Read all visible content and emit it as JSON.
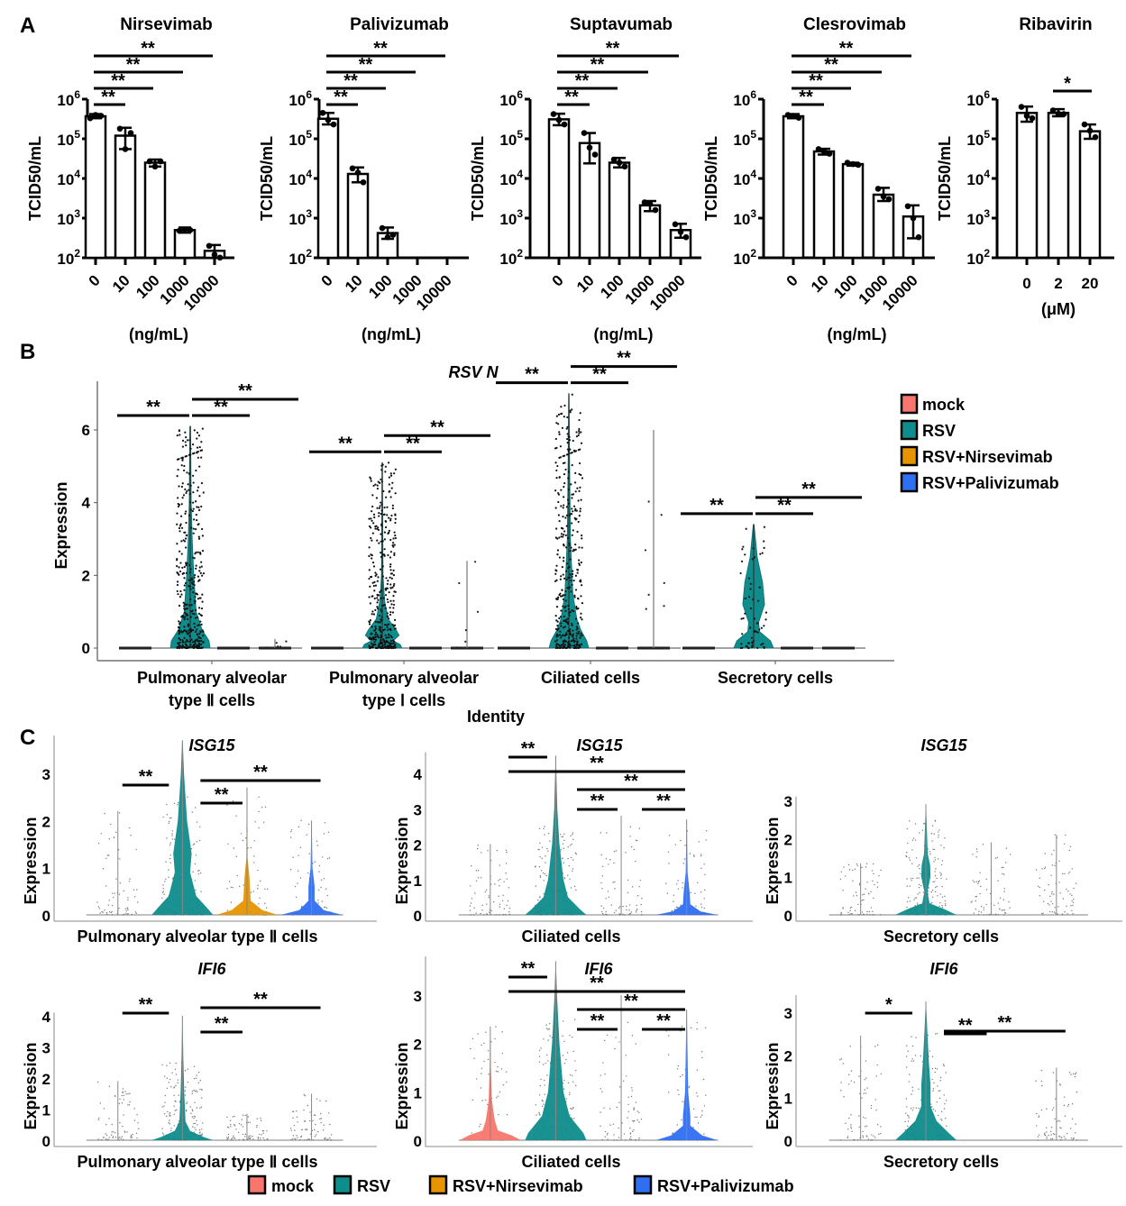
{
  "figure": {
    "panel_labels": [
      "A",
      "B",
      "C"
    ]
  },
  "legend": {
    "items": [
      {
        "label": "mock",
        "color": "#f8766d"
      },
      {
        "label": "RSV",
        "color": "#0f8c8c"
      },
      {
        "label": "RSV+Nirsevimab",
        "color": "#e69500"
      },
      {
        "label": "RSV+Palivizumab",
        "color": "#2f6ff2"
      }
    ]
  },
  "chart_data": [
    {
      "panel": "A",
      "type": "bar",
      "title": "Nirsevimab",
      "xlabel": "(ng/mL)",
      "ylabel": "TCID50/mL",
      "yscale": "log10",
      "ylim": [
        100,
        1000000
      ],
      "yticks": [
        "10^2",
        "10^3",
        "10^4",
        "10^5",
        "10^6"
      ],
      "categories": [
        "0",
        "10",
        "100",
        "1000",
        "10000"
      ],
      "values": [
        370000,
        120000,
        25000,
        500,
        150
      ],
      "errors_high": [
        420000,
        190000,
        30000,
        580,
        210
      ],
      "errors_low": [
        330000,
        55000,
        20000,
        430,
        100
      ],
      "points": [
        [
          330000,
          400000,
          380000
        ],
        [
          180000,
          55000,
          140000
        ],
        [
          27000,
          20000,
          27000
        ],
        [
          480.0,
          520,
          500
        ],
        [
          200,
          120,
          100
        ]
      ],
      "significance": [
        {
          "from": "0",
          "to": "10",
          "label": "**"
        },
        {
          "from": "0",
          "to": "100",
          "label": "**"
        },
        {
          "from": "0",
          "to": "1000",
          "label": "**"
        },
        {
          "from": "0",
          "to": "10000",
          "label": "**"
        }
      ]
    },
    {
      "panel": "A",
      "type": "bar",
      "title": "Palivizumab",
      "xlabel": "(ng/mL)",
      "ylabel": "TCID50/mL",
      "yscale": "log10",
      "ylim": [
        100,
        1000000
      ],
      "yticks": [
        "10^2",
        "10^3",
        "10^4",
        "10^5",
        "10^6"
      ],
      "categories": [
        "0",
        "10",
        "100",
        "1000",
        "10000"
      ],
      "values": [
        320000,
        13000,
        420,
        null,
        null
      ],
      "errors_high": [
        450000,
        19000,
        580,
        null,
        null
      ],
      "errors_low": [
        230000,
        8000,
        300,
        null,
        null
      ],
      "points": [
        [
          450000,
          300000,
          230000
        ],
        [
          18000,
          14000,
          8000
        ],
        [
          560,
          330,
          380
        ],
        [],
        []
      ],
      "significance": [
        {
          "from": "0",
          "to": "10",
          "label": "**"
        },
        {
          "from": "0",
          "to": "100",
          "label": "**"
        },
        {
          "from": "0",
          "to": "1000",
          "label": "**"
        },
        {
          "from": "0",
          "to": "10000",
          "label": "**"
        }
      ]
    },
    {
      "panel": "A",
      "type": "bar",
      "title": "Suptavumab",
      "xlabel": "(ng/mL)",
      "ylabel": "TCID50/mL",
      "yscale": "log10",
      "ylim": [
        100,
        1000000
      ],
      "yticks": [
        "10^2",
        "10^3",
        "10^4",
        "10^5",
        "10^6"
      ],
      "categories": [
        "0",
        "10",
        "100",
        "1000",
        "10000"
      ],
      "values": [
        310000,
        78000,
        25000,
        2100,
        500
      ],
      "errors_high": [
        430000,
        140000,
        33000,
        2700,
        720
      ],
      "errors_low": [
        220000,
        24000,
        19000,
        1500,
        320
      ],
      "points": [
        [
          420000,
          300000,
          230000
        ],
        [
          140000,
          60000,
          40000
        ],
        [
          30000,
          25000,
          20000
        ],
        [
          2500,
          2300,
          1600
        ],
        [
          700,
          450,
          330
        ]
      ],
      "significance": [
        {
          "from": "0",
          "to": "10",
          "label": "**"
        },
        {
          "from": "0",
          "to": "100",
          "label": "**"
        },
        {
          "from": "0",
          "to": "1000",
          "label": "**"
        },
        {
          "from": "0",
          "to": "10000",
          "label": "**"
        }
      ]
    },
    {
      "panel": "A",
      "type": "bar",
      "title": "Clesrovimab",
      "xlabel": "(ng/mL)",
      "ylabel": "TCID50/mL",
      "yscale": "log10",
      "ylim": [
        100,
        1000000
      ],
      "yticks": [
        "10^2",
        "10^3",
        "10^4",
        "10^5",
        "10^6"
      ],
      "categories": [
        "0",
        "10",
        "100",
        "1000",
        "10000"
      ],
      "values": [
        370000,
        48000,
        23000,
        3900,
        1100
      ],
      "errors_high": [
        420000,
        56000,
        25000,
        5800,
        2100
      ],
      "errors_low": [
        330000,
        40000,
        21000,
        2700,
        310
      ],
      "points": [
        [
          400000,
          380000,
          340000
        ],
        [
          55000,
          48000,
          42000
        ],
        [
          25000,
          23000,
          22000
        ],
        [
          5500,
          3500,
          3000
        ],
        [
          2000,
          1000,
          330
        ]
      ],
      "significance": [
        {
          "from": "0",
          "to": "10",
          "label": "**"
        },
        {
          "from": "0",
          "to": "100",
          "label": "**"
        },
        {
          "from": "0",
          "to": "1000",
          "label": "**"
        },
        {
          "from": "0",
          "to": "10000",
          "label": "**"
        }
      ]
    },
    {
      "panel": "A",
      "type": "bar",
      "title": "Ribavirin",
      "xlabel": "(μM)",
      "ylabel": "TCID50/mL",
      "yscale": "log10",
      "ylim": [
        100,
        1000000
      ],
      "yticks": [
        "10^2",
        "10^3",
        "10^4",
        "10^5",
        "10^6"
      ],
      "categories": [
        "0",
        "2",
        "20"
      ],
      "values": [
        450000,
        450000,
        155000
      ],
      "errors_high": [
        650000,
        560000,
        230000
      ],
      "errors_low": [
        270000,
        370000,
        100000
      ],
      "points": [
        [
          640000,
          380000,
          330000
        ],
        [
          520000,
          430000,
          420000
        ],
        [
          230000,
          160000,
          110000
        ]
      ],
      "significance": [
        {
          "from": "2",
          "to": "20",
          "label": "*"
        }
      ]
    },
    {
      "panel": "B",
      "type": "violin",
      "title": "RSV N",
      "xlabel": "Identity",
      "ylabel": "Expression",
      "ylim": [
        0,
        7
      ],
      "yticks": [
        0,
        2,
        4,
        6
      ],
      "categories": [
        "Pulmonary alveolar type Ⅱ cells",
        "Pulmonary alveolar type Ⅰ cells",
        "Ciliated cells",
        "Secretory cells"
      ],
      "category_lines": [
        [
          "Pulmonary alveolar",
          "type Ⅱ cells"
        ],
        [
          "Pulmonary alveolar",
          "type Ⅰ cells"
        ],
        [
          "Ciliated cells"
        ],
        [
          "Secretory cells"
        ]
      ],
      "groups": [
        "mock",
        "RSV",
        "RSV+Nirsevimab",
        "RSV+Palivizumab"
      ],
      "max_values": [
        [
          0,
          6.1,
          0,
          0.25
        ],
        [
          0,
          5.1,
          0,
          2.4
        ],
        [
          0,
          7.0,
          0,
          6.0
        ],
        [
          0,
          3.4,
          0,
          0
        ]
      ],
      "significance": [
        [
          {
            "from": "mock",
            "to": "RSV",
            "label": "**"
          },
          {
            "from": "RSV",
            "to": "RSV+Nirsevimab",
            "label": "**"
          },
          {
            "from": "RSV",
            "to": "RSV+Palivizumab",
            "label": "**"
          }
        ],
        [
          {
            "from": "mock",
            "to": "RSV",
            "label": "**"
          },
          {
            "from": "RSV",
            "to": "RSV+Nirsevimab",
            "label": "**"
          },
          {
            "from": "RSV",
            "to": "RSV+Palivizumab",
            "label": "**"
          }
        ],
        [
          {
            "from": "mock",
            "to": "RSV",
            "label": "**"
          },
          {
            "from": "RSV",
            "to": "RSV+Nirsevimab",
            "label": "**"
          },
          {
            "from": "RSV",
            "to": "RSV+Palivizumab",
            "label": "**"
          }
        ],
        [
          {
            "from": "mock",
            "to": "RSV",
            "label": "**"
          },
          {
            "from": "RSV",
            "to": "RSV+Nirsevimab",
            "label": "**"
          },
          {
            "from": "RSV",
            "to": "RSV+Palivizumab",
            "label": "**"
          }
        ]
      ]
    },
    {
      "panel": "C",
      "type": "violin",
      "title": "ISG15",
      "xlabel": "Pulmonary alveolar type Ⅱ cells",
      "ylabel": "Expression",
      "ylim": [
        0,
        3.8
      ],
      "yticks": [
        0,
        1,
        2,
        3
      ],
      "groups": [
        "mock",
        "RSV",
        "RSV+Nirsevimab",
        "RSV+Palivizumab"
      ],
      "max_values": [
        2.2,
        3.7,
        2.7,
        2.0
      ],
      "significance": [
        {
          "from": "mock",
          "to": "RSV",
          "label": "**"
        },
        {
          "from": "RSV",
          "to": "RSV+Nirsevimab",
          "label": "**"
        },
        {
          "from": "RSV",
          "to": "RSV+Palivizumab",
          "label": "**"
        }
      ]
    },
    {
      "panel": "C",
      "type": "violin",
      "title": "ISG15",
      "xlabel": "Ciliated cells",
      "ylabel": "Expression",
      "ylim": [
        0,
        4.6
      ],
      "yticks": [
        0,
        1,
        2,
        3,
        4
      ],
      "groups": [
        "mock",
        "RSV",
        "RSV+Nirsevimab",
        "RSV+Palivizumab"
      ],
      "max_values": [
        2.0,
        4.5,
        2.8,
        2.7
      ],
      "significance": [
        {
          "from": "mock",
          "to": "RSV",
          "label": "**"
        },
        {
          "from": "mock",
          "to": "RSV+Palivizumab",
          "label": "**"
        },
        {
          "from": "RSV",
          "to": "RSV+Palivizumab",
          "label": "**"
        },
        {
          "from": "RSV",
          "to": "RSV+Nirsevimab",
          "label": "**"
        },
        {
          "from": "RSV+Nirsevimab",
          "to": "RSV+Palivizumab",
          "label": "**"
        }
      ]
    },
    {
      "panel": "C",
      "type": "violin",
      "title": "ISG15",
      "xlabel": "Secretory cells",
      "ylabel": "Expression",
      "ylim": [
        0,
        3.1
      ],
      "yticks": [
        0,
        1,
        2,
        3
      ],
      "groups": [
        "mock",
        "RSV",
        "RSV+Nirsevimab",
        "RSV+Palivizumab"
      ],
      "max_values": [
        1.35,
        2.9,
        1.9,
        2.1
      ],
      "significance": []
    },
    {
      "panel": "C",
      "type": "violin",
      "title": "IFI6",
      "xlabel": "Pulmonary alveolar type Ⅱ cells",
      "ylabel": "Expression",
      "ylim": [
        0,
        4.1
      ],
      "yticks": [
        0,
        1,
        2,
        3,
        4
      ],
      "groups": [
        "mock",
        "RSV",
        "RSV+Nirsevimab",
        "RSV+Palivizumab"
      ],
      "max_values": [
        1.9,
        4.0,
        0.85,
        1.5
      ],
      "significance": [
        {
          "from": "mock",
          "to": "RSV",
          "label": "**"
        },
        {
          "from": "RSV",
          "to": "RSV+Nirsevimab",
          "label": "**"
        },
        {
          "from": "RSV",
          "to": "RSV+Palivizumab",
          "label": "**"
        }
      ]
    },
    {
      "panel": "C",
      "type": "violin",
      "title": "IFI6",
      "xlabel": "Ciliated cells",
      "ylabel": "Expression",
      "ylim": [
        0,
        3.8
      ],
      "yticks": [
        0,
        1,
        2,
        3
      ],
      "groups": [
        "mock",
        "RSV",
        "RSV+Nirsevimab",
        "RSV+Palivizumab"
      ],
      "max_values": [
        2.35,
        3.7,
        3.0,
        2.7
      ],
      "significance": [
        {
          "from": "mock",
          "to": "RSV",
          "label": "**"
        },
        {
          "from": "mock",
          "to": "RSV+Palivizumab",
          "label": "**"
        },
        {
          "from": "RSV",
          "to": "RSV+Palivizumab",
          "label": "**"
        },
        {
          "from": "RSV",
          "to": "RSV+Nirsevimab",
          "label": "**"
        },
        {
          "from": "RSV+Nirsevimab",
          "to": "RSV+Palivizumab",
          "label": "**"
        }
      ]
    },
    {
      "panel": "C",
      "type": "violin",
      "title": "IFI6",
      "xlabel": "Secretory cells",
      "ylabel": "Expression",
      "ylim": [
        0,
        3.4
      ],
      "yticks": [
        0,
        1,
        2,
        3
      ],
      "groups": [
        "mock",
        "RSV",
        "RSV+Nirsevimab",
        "RSV+Palivizumab"
      ],
      "max_values": [
        2.45,
        3.25,
        0,
        1.7
      ],
      "significance": [
        {
          "from": "mock",
          "to": "RSV",
          "label": "*"
        },
        {
          "from": "RSV",
          "to": "RSV+Nirsevimab",
          "label": "**"
        },
        {
          "from": "RSV",
          "to": "RSV+Palivizumab",
          "label": "**"
        }
      ]
    }
  ]
}
